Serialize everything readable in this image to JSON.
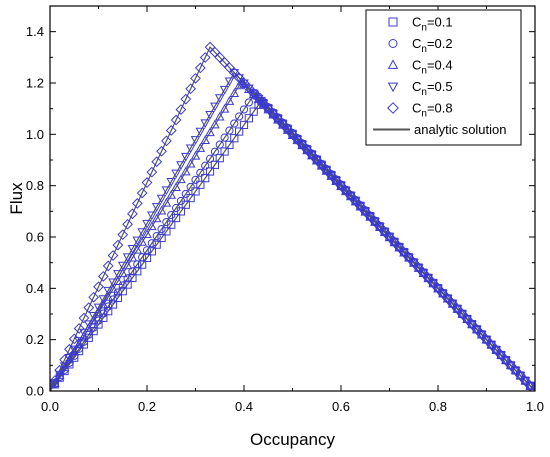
{
  "chart_data": {
    "type": "scatter",
    "xlabel": "Occupancy",
    "ylabel": "Flux",
    "xlim": [
      0,
      1.0
    ],
    "ylim": [
      0,
      1.5
    ],
    "xticks": [
      "0.0",
      "0.2",
      "0.4",
      "0.6",
      "0.8",
      "1.0"
    ],
    "yticks": [
      "0.0",
      "0.2",
      "0.4",
      "0.6",
      "0.8",
      "1.0",
      "1.2",
      "1.4"
    ],
    "legend_position": "top-right",
    "colors": {
      "markers": "#3a3acf",
      "analytic": "#555555",
      "axes": "#000000"
    },
    "series": [
      {
        "legend_main": "C",
        "legend_sub": "n",
        "legend_rest": "=0.1",
        "marker": "square",
        "peak": [
          0.436,
          1.13
        ]
      },
      {
        "legend_main": "C",
        "legend_sub": "n",
        "legend_rest": "=0.2",
        "marker": "circle",
        "peak": [
          0.423,
          1.16
        ]
      },
      {
        "legend_main": "C",
        "legend_sub": "n",
        "legend_rest": "=0.4",
        "marker": "triangle",
        "peak": [
          0.395,
          1.205
        ]
      },
      {
        "legend_main": "C",
        "legend_sub": "n",
        "legend_rest": "=0.5",
        "marker": "tri-down",
        "peak": [
          0.38,
          1.24
        ]
      },
      {
        "legend_main": "C",
        "legend_sub": "n",
        "legend_rest": "=0.8",
        "marker": "diamond",
        "peak": [
          0.33,
          1.34
        ]
      }
    ],
    "analytic": {
      "label": "analytic solution",
      "peaks": [
        [
          0.436,
          1.13
        ],
        [
          0.423,
          1.16
        ],
        [
          0.395,
          1.205
        ],
        [
          0.38,
          1.24
        ],
        [
          0.33,
          1.34
        ]
      ]
    }
  }
}
